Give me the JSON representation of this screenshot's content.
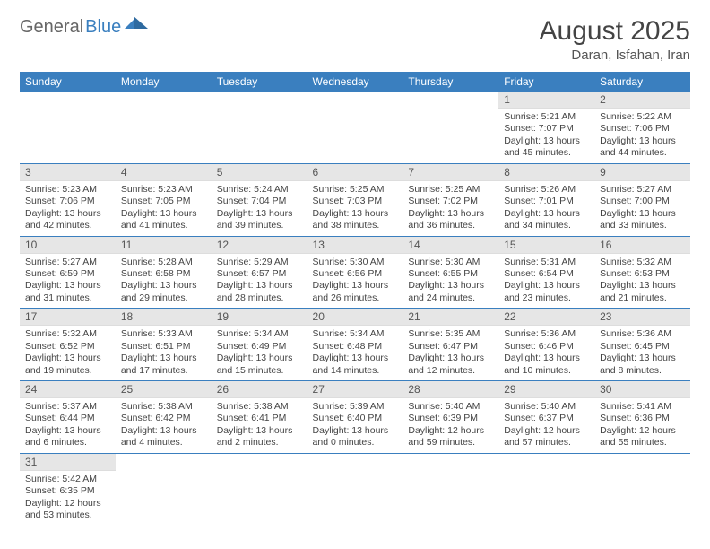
{
  "logo": {
    "general": "General",
    "blue": "Blue"
  },
  "title": "August 2025",
  "location": "Daran, Isfahan, Iran",
  "colors": {
    "header_bg": "#3a7fbf",
    "header_fg": "#ffffff",
    "daynum_bg": "#e6e6e6",
    "rule": "#3a7fbf"
  },
  "weekdays": [
    "Sunday",
    "Monday",
    "Tuesday",
    "Wednesday",
    "Thursday",
    "Friday",
    "Saturday"
  ],
  "weeks": [
    [
      null,
      null,
      null,
      null,
      null,
      {
        "n": "1",
        "sr": "Sunrise: 5:21 AM",
        "ss": "Sunset: 7:07 PM",
        "dl1": "Daylight: 13 hours",
        "dl2": "and 45 minutes."
      },
      {
        "n": "2",
        "sr": "Sunrise: 5:22 AM",
        "ss": "Sunset: 7:06 PM",
        "dl1": "Daylight: 13 hours",
        "dl2": "and 44 minutes."
      }
    ],
    [
      {
        "n": "3",
        "sr": "Sunrise: 5:23 AM",
        "ss": "Sunset: 7:06 PM",
        "dl1": "Daylight: 13 hours",
        "dl2": "and 42 minutes."
      },
      {
        "n": "4",
        "sr": "Sunrise: 5:23 AM",
        "ss": "Sunset: 7:05 PM",
        "dl1": "Daylight: 13 hours",
        "dl2": "and 41 minutes."
      },
      {
        "n": "5",
        "sr": "Sunrise: 5:24 AM",
        "ss": "Sunset: 7:04 PM",
        "dl1": "Daylight: 13 hours",
        "dl2": "and 39 minutes."
      },
      {
        "n": "6",
        "sr": "Sunrise: 5:25 AM",
        "ss": "Sunset: 7:03 PM",
        "dl1": "Daylight: 13 hours",
        "dl2": "and 38 minutes."
      },
      {
        "n": "7",
        "sr": "Sunrise: 5:25 AM",
        "ss": "Sunset: 7:02 PM",
        "dl1": "Daylight: 13 hours",
        "dl2": "and 36 minutes."
      },
      {
        "n": "8",
        "sr": "Sunrise: 5:26 AM",
        "ss": "Sunset: 7:01 PM",
        "dl1": "Daylight: 13 hours",
        "dl2": "and 34 minutes."
      },
      {
        "n": "9",
        "sr": "Sunrise: 5:27 AM",
        "ss": "Sunset: 7:00 PM",
        "dl1": "Daylight: 13 hours",
        "dl2": "and 33 minutes."
      }
    ],
    [
      {
        "n": "10",
        "sr": "Sunrise: 5:27 AM",
        "ss": "Sunset: 6:59 PM",
        "dl1": "Daylight: 13 hours",
        "dl2": "and 31 minutes."
      },
      {
        "n": "11",
        "sr": "Sunrise: 5:28 AM",
        "ss": "Sunset: 6:58 PM",
        "dl1": "Daylight: 13 hours",
        "dl2": "and 29 minutes."
      },
      {
        "n": "12",
        "sr": "Sunrise: 5:29 AM",
        "ss": "Sunset: 6:57 PM",
        "dl1": "Daylight: 13 hours",
        "dl2": "and 28 minutes."
      },
      {
        "n": "13",
        "sr": "Sunrise: 5:30 AM",
        "ss": "Sunset: 6:56 PM",
        "dl1": "Daylight: 13 hours",
        "dl2": "and 26 minutes."
      },
      {
        "n": "14",
        "sr": "Sunrise: 5:30 AM",
        "ss": "Sunset: 6:55 PM",
        "dl1": "Daylight: 13 hours",
        "dl2": "and 24 minutes."
      },
      {
        "n": "15",
        "sr": "Sunrise: 5:31 AM",
        "ss": "Sunset: 6:54 PM",
        "dl1": "Daylight: 13 hours",
        "dl2": "and 23 minutes."
      },
      {
        "n": "16",
        "sr": "Sunrise: 5:32 AM",
        "ss": "Sunset: 6:53 PM",
        "dl1": "Daylight: 13 hours",
        "dl2": "and 21 minutes."
      }
    ],
    [
      {
        "n": "17",
        "sr": "Sunrise: 5:32 AM",
        "ss": "Sunset: 6:52 PM",
        "dl1": "Daylight: 13 hours",
        "dl2": "and 19 minutes."
      },
      {
        "n": "18",
        "sr": "Sunrise: 5:33 AM",
        "ss": "Sunset: 6:51 PM",
        "dl1": "Daylight: 13 hours",
        "dl2": "and 17 minutes."
      },
      {
        "n": "19",
        "sr": "Sunrise: 5:34 AM",
        "ss": "Sunset: 6:49 PM",
        "dl1": "Daylight: 13 hours",
        "dl2": "and 15 minutes."
      },
      {
        "n": "20",
        "sr": "Sunrise: 5:34 AM",
        "ss": "Sunset: 6:48 PM",
        "dl1": "Daylight: 13 hours",
        "dl2": "and 14 minutes."
      },
      {
        "n": "21",
        "sr": "Sunrise: 5:35 AM",
        "ss": "Sunset: 6:47 PM",
        "dl1": "Daylight: 13 hours",
        "dl2": "and 12 minutes."
      },
      {
        "n": "22",
        "sr": "Sunrise: 5:36 AM",
        "ss": "Sunset: 6:46 PM",
        "dl1": "Daylight: 13 hours",
        "dl2": "and 10 minutes."
      },
      {
        "n": "23",
        "sr": "Sunrise: 5:36 AM",
        "ss": "Sunset: 6:45 PM",
        "dl1": "Daylight: 13 hours",
        "dl2": "and 8 minutes."
      }
    ],
    [
      {
        "n": "24",
        "sr": "Sunrise: 5:37 AM",
        "ss": "Sunset: 6:44 PM",
        "dl1": "Daylight: 13 hours",
        "dl2": "and 6 minutes."
      },
      {
        "n": "25",
        "sr": "Sunrise: 5:38 AM",
        "ss": "Sunset: 6:42 PM",
        "dl1": "Daylight: 13 hours",
        "dl2": "and 4 minutes."
      },
      {
        "n": "26",
        "sr": "Sunrise: 5:38 AM",
        "ss": "Sunset: 6:41 PM",
        "dl1": "Daylight: 13 hours",
        "dl2": "and 2 minutes."
      },
      {
        "n": "27",
        "sr": "Sunrise: 5:39 AM",
        "ss": "Sunset: 6:40 PM",
        "dl1": "Daylight: 13 hours",
        "dl2": "and 0 minutes."
      },
      {
        "n": "28",
        "sr": "Sunrise: 5:40 AM",
        "ss": "Sunset: 6:39 PM",
        "dl1": "Daylight: 12 hours",
        "dl2": "and 59 minutes."
      },
      {
        "n": "29",
        "sr": "Sunrise: 5:40 AM",
        "ss": "Sunset: 6:37 PM",
        "dl1": "Daylight: 12 hours",
        "dl2": "and 57 minutes."
      },
      {
        "n": "30",
        "sr": "Sunrise: 5:41 AM",
        "ss": "Sunset: 6:36 PM",
        "dl1": "Daylight: 12 hours",
        "dl2": "and 55 minutes."
      }
    ],
    [
      {
        "n": "31",
        "sr": "Sunrise: 5:42 AM",
        "ss": "Sunset: 6:35 PM",
        "dl1": "Daylight: 12 hours",
        "dl2": "and 53 minutes."
      },
      null,
      null,
      null,
      null,
      null,
      null
    ]
  ]
}
